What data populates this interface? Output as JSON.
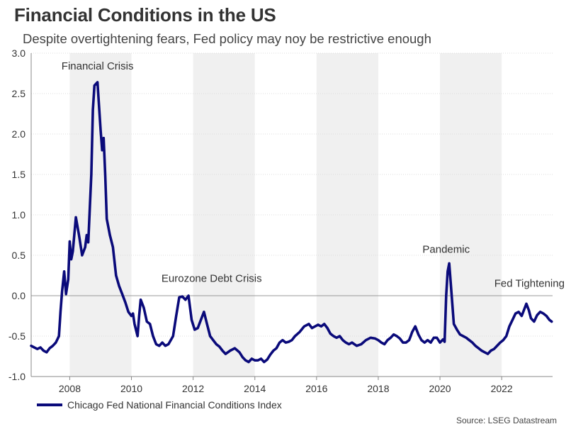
{
  "title": "Financial Conditions in the US",
  "subtitle": "Despite overtightening fears, Fed policy may noy be restrictive enough",
  "legend_label": "Chicago Fed National Financial Conditions Index",
  "source": "Source: LSEG Datastream",
  "colors": {
    "line": "#0a0a7a",
    "band": "#f0f0f0",
    "zero": "#999999",
    "grid": "#dddddd"
  },
  "chart_data": {
    "type": "line",
    "title": "Financial Conditions in the US",
    "xlabel": "",
    "ylabel": "",
    "xlim": [
      2006.75,
      2023.65
    ],
    "ylim": [
      -1.0,
      3.0
    ],
    "yticks": [
      3.0,
      2.5,
      2.0,
      1.5,
      1.0,
      0.5,
      0.0,
      -0.5,
      -1.0
    ],
    "ytick_labels": [
      "3.0",
      "2.5",
      "2.0",
      "1.5",
      "1.0",
      "0.5",
      "0.0",
      "-0.5",
      "-1.0"
    ],
    "xticks": [
      2008,
      2010,
      2012,
      2014,
      2016,
      2018,
      2020,
      2022
    ],
    "xtick_labels": [
      "2008",
      "2010",
      "2012",
      "2014",
      "2016",
      "2018",
      "2020",
      "2022"
    ],
    "shaded_bands": [
      [
        2008,
        2010
      ],
      [
        2012,
        2014
      ],
      [
        2016,
        2018
      ],
      [
        2020,
        2022
      ]
    ],
    "zero_line": 0.0,
    "annotations": [
      {
        "text": "Financial Crisis",
        "x": 2008.9,
        "y": 2.8
      },
      {
        "text": "Eurozone Debt Crisis",
        "x": 2012.6,
        "y": 0.17
      },
      {
        "text": "Pandemic",
        "x": 2020.2,
        "y": 0.53
      },
      {
        "text": "Fed Tightening",
        "x": 2022.9,
        "y": 0.11
      }
    ],
    "series": [
      {
        "name": "Chicago Fed National Financial Conditions Index",
        "x": [
          2006.75,
          2006.85,
          2006.95,
          2007.05,
          2007.15,
          2007.25,
          2007.35,
          2007.45,
          2007.55,
          2007.65,
          2007.7,
          2007.75,
          2007.82,
          2007.88,
          2007.95,
          2008.0,
          2008.05,
          2008.1,
          2008.2,
          2008.3,
          2008.4,
          2008.5,
          2008.55,
          2008.6,
          2008.7,
          2008.75,
          2008.8,
          2008.9,
          2009.0,
          2009.05,
          2009.1,
          2009.15,
          2009.2,
          2009.3,
          2009.4,
          2009.5,
          2009.6,
          2009.7,
          2009.8,
          2009.9,
          2010.0,
          2010.05,
          2010.1,
          2010.2,
          2010.25,
          2010.3,
          2010.4,
          2010.5,
          2010.6,
          2010.7,
          2010.8,
          2010.9,
          2011.0,
          2011.1,
          2011.2,
          2011.35,
          2011.45,
          2011.55,
          2011.65,
          2011.75,
          2011.85,
          2011.95,
          2012.05,
          2012.15,
          2012.25,
          2012.35,
          2012.45,
          2012.55,
          2012.65,
          2012.75,
          2012.85,
          2012.95,
          2013.05,
          2013.2,
          2013.35,
          2013.5,
          2013.6,
          2013.7,
          2013.8,
          2013.9,
          2014.0,
          2014.1,
          2014.2,
          2014.3,
          2014.4,
          2014.5,
          2014.6,
          2014.7,
          2014.8,
          2014.9,
          2015.0,
          2015.1,
          2015.2,
          2015.3,
          2015.45,
          2015.6,
          2015.75,
          2015.85,
          2015.95,
          2016.05,
          2016.15,
          2016.25,
          2016.35,
          2016.45,
          2016.55,
          2016.65,
          2016.75,
          2016.85,
          2016.95,
          2017.05,
          2017.15,
          2017.3,
          2017.45,
          2017.6,
          2017.75,
          2017.9,
          2018.0,
          2018.1,
          2018.2,
          2018.3,
          2018.4,
          2018.5,
          2018.6,
          2018.7,
          2018.8,
          2018.9,
          2019.0,
          2019.05,
          2019.1,
          2019.2,
          2019.3,
          2019.4,
          2019.5,
          2019.6,
          2019.7,
          2019.8,
          2019.9,
          2020.0,
          2020.1,
          2020.15,
          2020.2,
          2020.25,
          2020.3,
          2020.35,
          2020.45,
          2020.55,
          2020.65,
          2020.75,
          2020.85,
          2020.95,
          2021.05,
          2021.15,
          2021.25,
          2021.35,
          2021.45,
          2021.55,
          2021.65,
          2021.75,
          2021.85,
          2021.95,
          2022.05,
          2022.15,
          2022.25,
          2022.35,
          2022.45,
          2022.55,
          2022.65,
          2022.72,
          2022.8,
          2022.88,
          2022.95,
          2023.05,
          2023.15,
          2023.25,
          2023.35,
          2023.45,
          2023.55,
          2023.62
        ],
        "y": [
          -0.62,
          -0.64,
          -0.66,
          -0.64,
          -0.68,
          -0.7,
          -0.65,
          -0.62,
          -0.58,
          -0.5,
          -0.2,
          0.05,
          0.3,
          0.02,
          0.2,
          0.67,
          0.45,
          0.55,
          0.97,
          0.75,
          0.5,
          0.6,
          0.75,
          0.66,
          1.5,
          2.3,
          2.6,
          2.64,
          2.05,
          1.8,
          1.95,
          1.5,
          0.95,
          0.75,
          0.6,
          0.25,
          0.12,
          0.02,
          -0.08,
          -0.2,
          -0.25,
          -0.22,
          -0.35,
          -0.5,
          -0.25,
          -0.05,
          -0.15,
          -0.32,
          -0.35,
          -0.5,
          -0.6,
          -0.62,
          -0.58,
          -0.62,
          -0.6,
          -0.5,
          -0.25,
          -0.02,
          -0.01,
          -0.05,
          0.0,
          -0.3,
          -0.42,
          -0.4,
          -0.3,
          -0.2,
          -0.35,
          -0.5,
          -0.55,
          -0.6,
          -0.63,
          -0.68,
          -0.72,
          -0.68,
          -0.65,
          -0.7,
          -0.76,
          -0.8,
          -0.82,
          -0.78,
          -0.8,
          -0.8,
          -0.78,
          -0.82,
          -0.79,
          -0.73,
          -0.68,
          -0.65,
          -0.58,
          -0.55,
          -0.58,
          -0.57,
          -0.55,
          -0.5,
          -0.45,
          -0.38,
          -0.35,
          -0.4,
          -0.38,
          -0.36,
          -0.38,
          -0.35,
          -0.4,
          -0.47,
          -0.5,
          -0.52,
          -0.5,
          -0.55,
          -0.58,
          -0.6,
          -0.58,
          -0.62,
          -0.6,
          -0.55,
          -0.52,
          -0.53,
          -0.55,
          -0.58,
          -0.6,
          -0.55,
          -0.52,
          -0.48,
          -0.5,
          -0.53,
          -0.58,
          -0.58,
          -0.55,
          -0.5,
          -0.45,
          -0.38,
          -0.48,
          -0.55,
          -0.58,
          -0.55,
          -0.58,
          -0.52,
          -0.52,
          -0.58,
          -0.54,
          -0.57,
          0.0,
          0.3,
          0.4,
          0.15,
          -0.35,
          -0.42,
          -0.48,
          -0.5,
          -0.52,
          -0.55,
          -0.58,
          -0.62,
          -0.65,
          -0.68,
          -0.7,
          -0.72,
          -0.68,
          -0.66,
          -0.62,
          -0.58,
          -0.55,
          -0.5,
          -0.38,
          -0.3,
          -0.22,
          -0.2,
          -0.25,
          -0.18,
          -0.1,
          -0.18,
          -0.28,
          -0.32,
          -0.24,
          -0.2,
          -0.22,
          -0.25,
          -0.3,
          -0.32
        ]
      }
    ]
  }
}
